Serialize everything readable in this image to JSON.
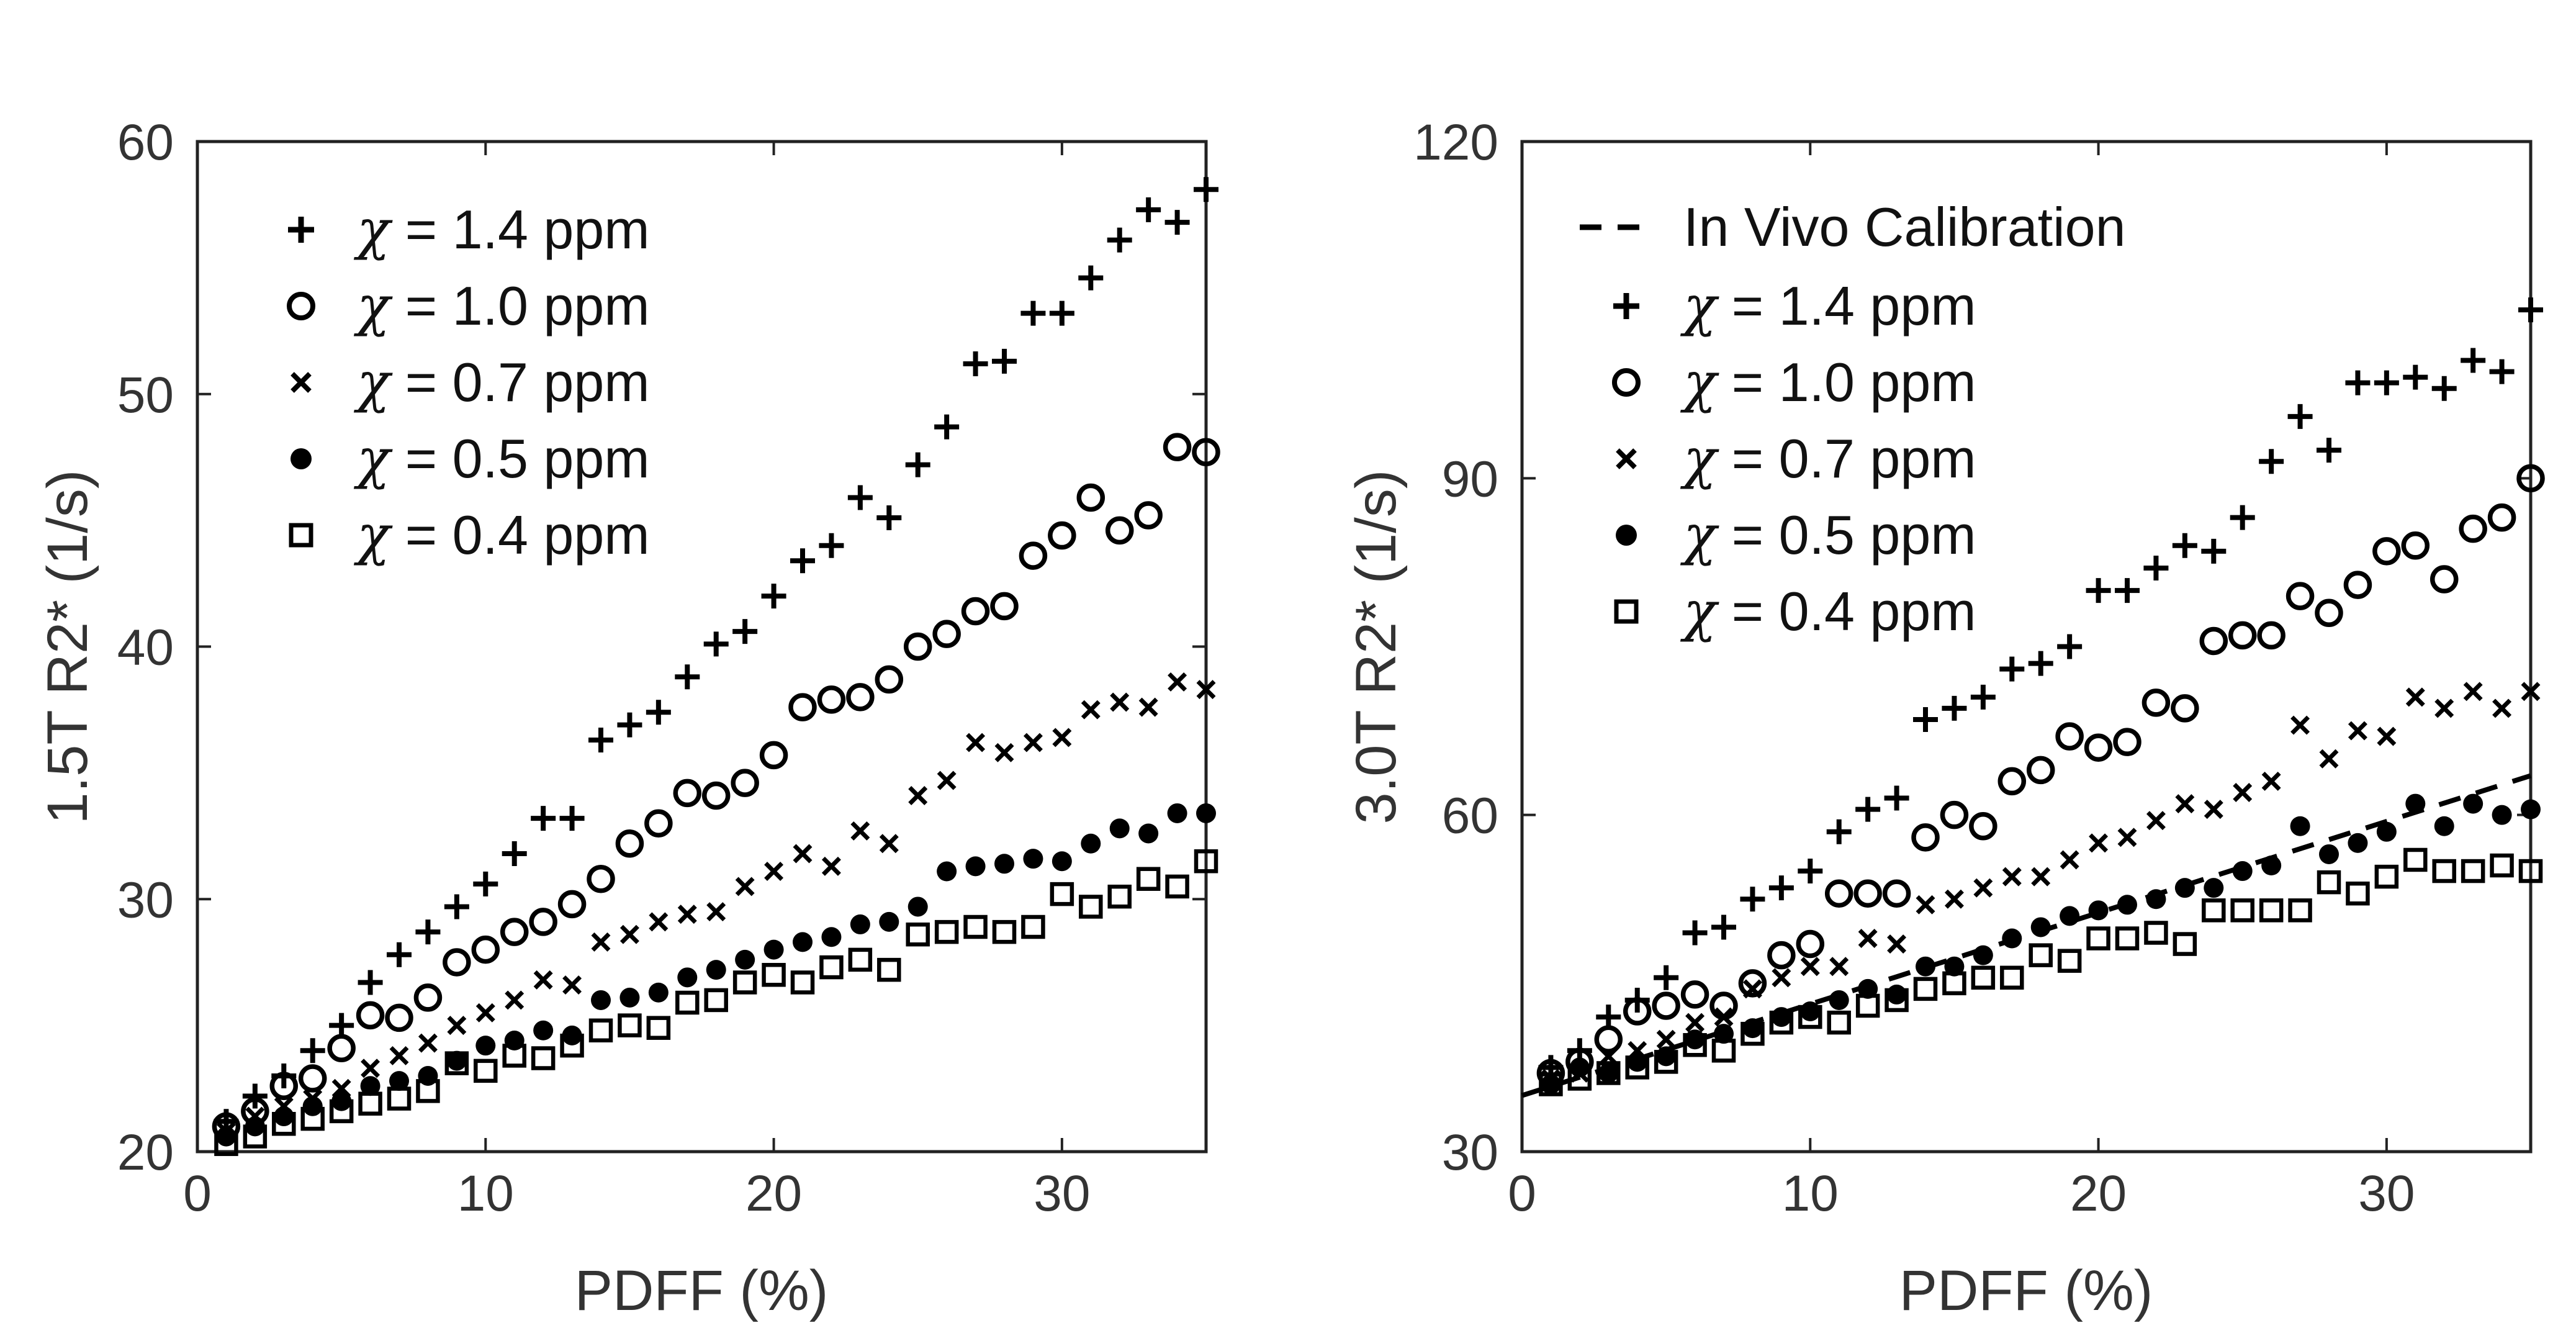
{
  "figure": {
    "panels": 2,
    "colors": {
      "marker": "#000000",
      "axis": "#222222",
      "text": "#333333",
      "background": "#ffffff"
    }
  },
  "chart_data": [
    {
      "type": "scatter",
      "title": "",
      "xlabel": "PDFF (%)",
      "ylabel": "1.5T R2* (1/s)",
      "xlim": [
        0,
        35
      ],
      "ylim": [
        20,
        60
      ],
      "xticks": [
        0,
        10,
        20,
        30
      ],
      "yticks": [
        20,
        30,
        40,
        50,
        60
      ],
      "x": [
        1,
        2,
        3,
        4,
        5,
        6,
        7,
        8,
        9,
        10,
        11,
        12,
        13,
        14,
        15,
        16,
        17,
        18,
        19,
        20,
        21,
        22,
        23,
        24,
        25,
        26,
        27,
        28,
        29,
        30,
        31,
        32,
        33,
        34,
        35
      ],
      "legend_position": "top-left",
      "series": [
        {
          "name": "1.4 ppm",
          "marker": "plus",
          "values": [
            21.2,
            22.2,
            23.0,
            24.0,
            25.0,
            26.7,
            27.8,
            28.7,
            29.7,
            30.6,
            31.8,
            33.2,
            33.2,
            36.3,
            36.9,
            37.4,
            38.8,
            40.1,
            40.6,
            42.0,
            43.4,
            44.0,
            45.9,
            45.1,
            47.2,
            48.7,
            51.2,
            51.3,
            53.2,
            53.2,
            54.6,
            56.1,
            57.3,
            56.8,
            58.1
          ]
        },
        {
          "name": "1.0 ppm",
          "marker": "circle",
          "values": [
            21.0,
            21.6,
            22.6,
            22.9,
            24.1,
            25.4,
            25.3,
            26.1,
            27.5,
            28.0,
            28.7,
            29.1,
            29.8,
            30.8,
            32.2,
            33.0,
            34.2,
            34.1,
            34.6,
            35.7,
            37.6,
            37.9,
            38.0,
            38.7,
            40.0,
            40.5,
            41.4,
            41.6,
            43.6,
            44.4,
            45.9,
            44.6,
            45.2,
            47.9,
            47.7
          ]
        },
        {
          "name": "0.7 ppm",
          "marker": "x",
          "values": [
            20.8,
            21.4,
            21.8,
            22.1,
            22.5,
            23.3,
            23.8,
            24.3,
            25.0,
            25.5,
            26.0,
            26.8,
            26.6,
            28.3,
            28.6,
            29.1,
            29.4,
            29.5,
            30.5,
            31.1,
            31.8,
            31.3,
            32.7,
            32.2,
            34.1,
            34.7,
            36.2,
            35.8,
            36.2,
            36.4,
            37.5,
            37.8,
            37.6,
            38.6,
            38.3
          ]
        },
        {
          "name": "0.5 ppm",
          "marker": "dot",
          "values": [
            20.6,
            21.0,
            21.4,
            21.8,
            22.0,
            22.6,
            22.8,
            23.0,
            23.6,
            24.2,
            24.4,
            24.8,
            24.6,
            26.0,
            26.1,
            26.3,
            26.9,
            27.2,
            27.6,
            28.0,
            28.3,
            28.5,
            29.0,
            29.1,
            29.7,
            31.1,
            31.3,
            31.4,
            31.6,
            31.5,
            32.2,
            32.8,
            32.6,
            33.4,
            33.4
          ]
        },
        {
          "name": "0.4 ppm",
          "marker": "square",
          "values": [
            20.3,
            20.6,
            21.1,
            21.3,
            21.6,
            21.9,
            22.1,
            22.4,
            23.5,
            23.2,
            23.8,
            23.7,
            24.2,
            24.8,
            25.0,
            24.9,
            25.9,
            26.0,
            26.7,
            27.0,
            26.7,
            27.3,
            27.6,
            27.2,
            28.6,
            28.7,
            28.9,
            28.7,
            28.9,
            30.2,
            29.7,
            30.1,
            30.8,
            30.5,
            31.5
          ]
        }
      ]
    },
    {
      "type": "scatter",
      "title": "",
      "xlabel": "PDFF (%)",
      "ylabel": "3.0T R2* (1/s)",
      "xlim": [
        0,
        35
      ],
      "ylim": [
        30,
        120
      ],
      "xticks": [
        0,
        10,
        20,
        30
      ],
      "yticks": [
        30,
        60,
        90,
        120
      ],
      "x": [
        1,
        2,
        3,
        4,
        5,
        6,
        7,
        8,
        9,
        10,
        11,
        12,
        13,
        14,
        15,
        16,
        17,
        18,
        19,
        20,
        21,
        22,
        23,
        24,
        25,
        26,
        27,
        28,
        29,
        30,
        31,
        32,
        33,
        34,
        35
      ],
      "legend_position": "top-left",
      "fit_line": {
        "name": "In Vivo Calibration",
        "style": "dashed",
        "x": [
          0,
          35
        ],
        "y": [
          35.0,
          63.5
        ]
      },
      "series": [
        {
          "name": "1.4 ppm",
          "marker": "plus",
          "values": [
            37.5,
            39.0,
            42.0,
            43.5,
            45.5,
            49.5,
            50.0,
            52.5,
            53.5,
            55.0,
            58.5,
            60.5,
            61.5,
            68.5,
            69.5,
            70.5,
            73.0,
            73.5,
            75.0,
            80.0,
            80.0,
            82.0,
            84.0,
            83.5,
            86.5,
            91.5,
            95.5,
            92.5,
            98.5,
            98.5,
            99.0,
            98.0,
            100.5,
            99.5,
            105.0
          ]
        },
        {
          "name": "1.0 ppm",
          "marker": "circle",
          "values": [
            37.0,
            38.0,
            40.0,
            42.5,
            43.0,
            44.0,
            43.0,
            45.0,
            47.5,
            48.5,
            53.0,
            53.0,
            53.0,
            58.0,
            60.0,
            59.0,
            63.0,
            64.0,
            67.0,
            66.0,
            66.5,
            70.0,
            69.5,
            75.5,
            76.0,
            76.0,
            79.5,
            78.0,
            80.5,
            83.5,
            84.0,
            81.0,
            85.5,
            86.5,
            90.0
          ]
        },
        {
          "name": "0.7 ppm",
          "marker": "x",
          "values": [
            36.5,
            37.0,
            38.5,
            39.0,
            40.0,
            41.5,
            42.0,
            44.5,
            45.5,
            46.5,
            46.5,
            49.0,
            48.5,
            52.0,
            52.5,
            53.5,
            54.5,
            54.5,
            56.0,
            57.5,
            58.0,
            59.5,
            61.0,
            60.5,
            62.0,
            63.0,
            68.0,
            65.0,
            67.5,
            67.0,
            70.5,
            69.5,
            71.0,
            69.5,
            71.0
          ]
        },
        {
          "name": "0.5 ppm",
          "marker": "dot",
          "values": [
            36.0,
            37.5,
            37.0,
            38.0,
            38.5,
            40.0,
            40.5,
            41.0,
            42.0,
            42.5,
            43.5,
            44.5,
            44.0,
            46.5,
            46.5,
            47.5,
            49.0,
            50.0,
            51.0,
            51.5,
            52.0,
            52.5,
            53.5,
            53.5,
            55.0,
            55.5,
            59.0,
            56.5,
            57.5,
            58.5,
            61.0,
            59.0,
            61.0,
            60.0,
            60.5
          ]
        },
        {
          "name": "0.4 ppm",
          "marker": "square",
          "values": [
            36.0,
            36.5,
            37.0,
            37.5,
            38.0,
            39.5,
            39.0,
            40.5,
            41.5,
            42.0,
            41.5,
            43.0,
            43.5,
            44.5,
            45.0,
            45.5,
            45.5,
            47.5,
            47.0,
            49.0,
            49.0,
            49.5,
            48.5,
            51.5,
            51.5,
            51.5,
            51.5,
            54.0,
            53.0,
            54.5,
            56.0,
            55.0,
            55.0,
            55.5,
            55.0
          ]
        }
      ]
    }
  ],
  "legends": [
    {
      "entries": [
        {
          "symbol": "χ",
          "text": " = 1.4 ppm",
          "marker": "plus"
        },
        {
          "symbol": "χ",
          "text": " = 1.0 ppm",
          "marker": "circle"
        },
        {
          "symbol": "χ",
          "text": " = 0.7 ppm",
          "marker": "x"
        },
        {
          "symbol": "χ",
          "text": " = 0.5 ppm",
          "marker": "dot"
        },
        {
          "symbol": "χ",
          "text": " = 0.4 ppm",
          "marker": "square"
        }
      ]
    },
    {
      "line_entry": {
        "text": "In Vivo Calibration",
        "style": "dashed"
      },
      "entries": [
        {
          "symbol": "χ",
          "text": " = 1.4 ppm",
          "marker": "plus"
        },
        {
          "symbol": "χ",
          "text": " = 1.0 ppm",
          "marker": "circle"
        },
        {
          "symbol": "χ",
          "text": " = 0.7 ppm",
          "marker": "x"
        },
        {
          "symbol": "χ",
          "text": " = 0.5 ppm",
          "marker": "dot"
        },
        {
          "symbol": "χ",
          "text": " = 0.4 ppm",
          "marker": "square"
        }
      ]
    }
  ]
}
